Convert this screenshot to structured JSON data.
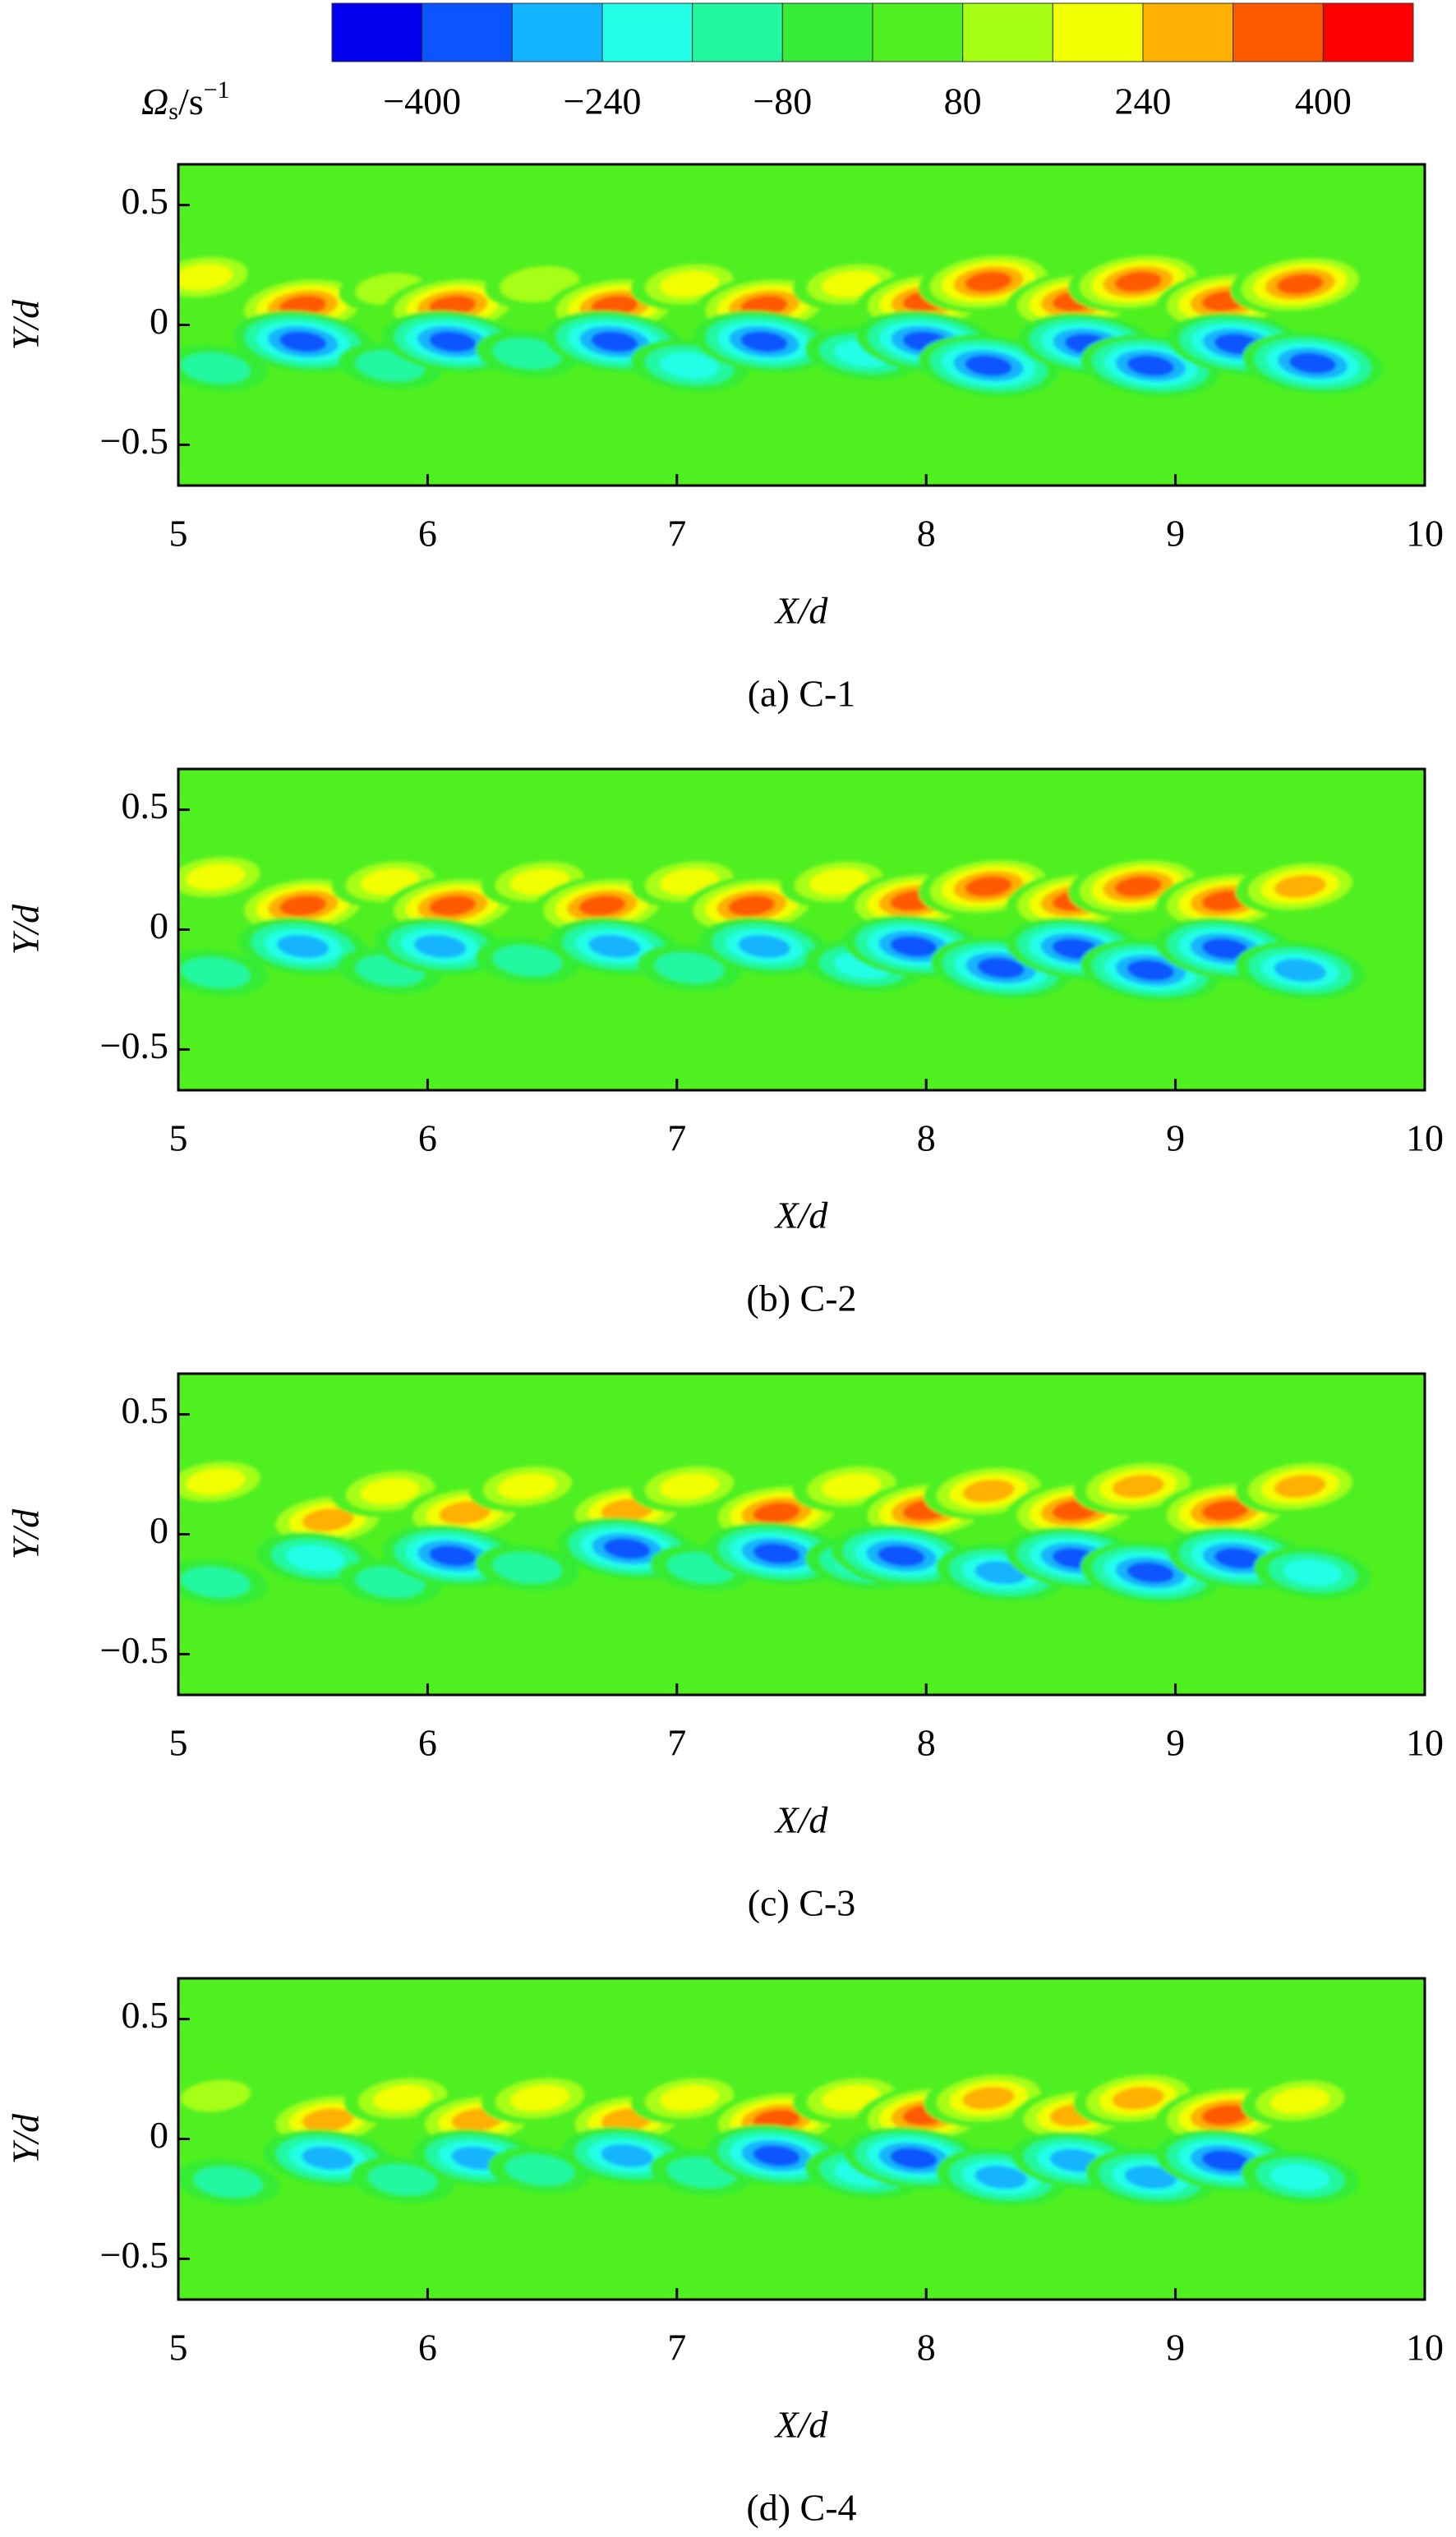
{
  "colorbar": {
    "label": {
      "symbol": "Ω",
      "subscript": "s",
      "unit": "/s",
      "superscript": "−1"
    },
    "clim": [
      -480,
      480
    ],
    "colors": [
      "#0000ee",
      "#0a55ff",
      "#12b4ff",
      "#22ffe6",
      "#22f8a0",
      "#36ec36",
      "#50f020",
      "#a6ff12",
      "#f2ff00",
      "#ffb000",
      "#ff5a00",
      "#ff0000"
    ],
    "ticks": [
      {
        "value": -400,
        "label": "−400"
      },
      {
        "value": -240,
        "label": "−240"
      },
      {
        "value": -80,
        "label": "−80"
      },
      80,
      240,
      400
    ]
  },
  "chart_data": [
    {
      "type": "contour",
      "caption": "(a) C-1",
      "xlabel": "X/d",
      "ylabel": "Y/d",
      "xlim": [
        5,
        10
      ],
      "ylim": [
        -0.67,
        0.67
      ],
      "xticks": [
        5,
        6,
        7,
        8,
        9,
        10
      ],
      "yticks": [
        0.5,
        0,
        {
          "value": -0.5,
          "label": "−0.5"
        }
      ],
      "x": [
        5.1,
        5.5,
        5.85,
        6.1,
        6.45,
        6.75,
        7.05,
        7.35,
        7.7,
        8.0,
        8.25,
        8.6,
        8.85,
        9.2,
        9.5,
        5.15,
        5.5,
        5.85,
        6.1,
        6.4,
        6.75,
        7.05,
        7.35,
        7.75,
        8.0,
        8.25,
        8.65,
        8.9,
        9.25,
        9.55
      ],
      "y": [
        0.2,
        0.08,
        0.15,
        0.08,
        0.17,
        0.08,
        0.17,
        0.08,
        0.17,
        0.1,
        0.18,
        0.1,
        0.18,
        0.1,
        0.17,
        -0.18,
        -0.07,
        -0.17,
        -0.07,
        -0.12,
        -0.07,
        -0.17,
        -0.07,
        -0.12,
        -0.07,
        -0.17,
        -0.08,
        -0.17,
        -0.08,
        -0.16
      ],
      "values": [
        240,
        400,
        160,
        400,
        200,
        400,
        240,
        400,
        240,
        400,
        400,
        400,
        400,
        400,
        400,
        -160,
        -400,
        -160,
        -400,
        -160,
        -400,
        -240,
        -400,
        -240,
        -400,
        -400,
        -400,
        -400,
        -400,
        -400
      ]
    },
    {
      "type": "contour",
      "caption": "(b) C-2",
      "xlabel": "X/d",
      "ylabel": "Y/d",
      "xlim": [
        5,
        10
      ],
      "ylim": [
        -0.67,
        0.67
      ],
      "xticks": [
        5,
        6,
        7,
        8,
        9,
        10
      ],
      "yticks": [
        0.5,
        0,
        {
          "value": -0.5,
          "label": "−0.5"
        }
      ],
      "x": [
        5.15,
        5.5,
        5.85,
        6.1,
        6.45,
        6.7,
        7.05,
        7.3,
        7.65,
        7.95,
        8.25,
        8.6,
        8.85,
        9.2,
        9.5,
        5.15,
        5.5,
        5.85,
        6.05,
        6.4,
        6.75,
        7.05,
        7.35,
        7.75,
        7.95,
        8.3,
        8.6,
        8.9,
        9.2,
        9.5
      ],
      "y": [
        0.22,
        0.1,
        0.2,
        0.1,
        0.2,
        0.1,
        0.2,
        0.1,
        0.2,
        0.12,
        0.18,
        0.12,
        0.18,
        0.12,
        0.18,
        -0.18,
        -0.07,
        -0.17,
        -0.07,
        -0.13,
        -0.07,
        -0.16,
        -0.07,
        -0.15,
        -0.07,
        -0.16,
        -0.08,
        -0.17,
        -0.08,
        -0.17
      ],
      "values": [
        240,
        400,
        240,
        400,
        240,
        400,
        240,
        400,
        240,
        400,
        400,
        400,
        400,
        400,
        320,
        -160,
        -320,
        -160,
        -320,
        -160,
        -320,
        -160,
        -320,
        -240,
        -400,
        -400,
        -400,
        -400,
        -400,
        -320
      ]
    },
    {
      "type": "contour",
      "caption": "(c) C-3",
      "xlabel": "X/d",
      "ylabel": "Y/d",
      "xlim": [
        5,
        10
      ],
      "ylim": [
        -0.67,
        0.67
      ],
      "xticks": [
        5,
        6,
        7,
        8,
        9,
        10
      ],
      "yticks": [
        0.5,
        0,
        {
          "value": -0.5,
          "label": "−0.5"
        }
      ],
      "x": [
        5.15,
        5.6,
        5.85,
        6.15,
        6.4,
        6.8,
        7.05,
        7.4,
        7.7,
        8.0,
        8.25,
        8.6,
        8.85,
        9.2,
        9.5,
        5.15,
        5.55,
        5.85,
        6.1,
        6.4,
        6.8,
        7.1,
        7.4,
        7.75,
        7.9,
        8.3,
        8.6,
        8.9,
        9.25,
        9.55
      ],
      "y": [
        0.22,
        0.06,
        0.18,
        0.09,
        0.2,
        0.1,
        0.2,
        0.09,
        0.2,
        0.1,
        0.18,
        0.1,
        0.2,
        0.1,
        0.2,
        -0.2,
        -0.1,
        -0.2,
        -0.09,
        -0.14,
        -0.06,
        -0.14,
        -0.08,
        -0.12,
        -0.09,
        -0.16,
        -0.1,
        -0.16,
        -0.1,
        -0.16
      ],
      "values": [
        240,
        320,
        240,
        320,
        240,
        320,
        240,
        400,
        240,
        400,
        320,
        400,
        320,
        400,
        320,
        -160,
        -240,
        -160,
        -400,
        -160,
        -400,
        -160,
        -400,
        -240,
        -400,
        -320,
        -400,
        -400,
        -400,
        -240
      ]
    },
    {
      "type": "contour",
      "caption": "(d) C-4",
      "xlabel": "X/d",
      "ylabel": "Y/d",
      "xlim": [
        5,
        10
      ],
      "ylim": [
        -0.67,
        0.67
      ],
      "xticks": [
        5,
        6,
        7,
        8,
        9,
        10
      ],
      "yticks": [
        0.5,
        0,
        {
          "value": -0.5,
          "label": "−0.5"
        }
      ],
      "x": [
        5.15,
        5.6,
        5.9,
        6.2,
        6.45,
        6.8,
        7.05,
        7.4,
        7.7,
        8.0,
        8.25,
        8.6,
        8.85,
        9.2,
        9.5,
        5.2,
        5.6,
        5.9,
        6.2,
        6.45,
        6.8,
        7.1,
        7.4,
        7.75,
        7.95,
        8.3,
        8.6,
        8.9,
        9.2,
        9.5
      ],
      "y": [
        0.18,
        0.08,
        0.17,
        0.08,
        0.17,
        0.08,
        0.17,
        0.08,
        0.17,
        0.1,
        0.17,
        0.1,
        0.17,
        0.1,
        0.16,
        -0.18,
        -0.08,
        -0.17,
        -0.08,
        -0.13,
        -0.07,
        -0.14,
        -0.07,
        -0.14,
        -0.08,
        -0.16,
        -0.09,
        -0.16,
        -0.09,
        -0.16
      ],
      "values": [
        160,
        320,
        240,
        320,
        240,
        320,
        240,
        400,
        240,
        400,
        320,
        320,
        320,
        400,
        240,
        -160,
        -320,
        -160,
        -320,
        -160,
        -320,
        -160,
        -400,
        -240,
        -400,
        -320,
        -320,
        -320,
        -400,
        -240
      ]
    }
  ]
}
